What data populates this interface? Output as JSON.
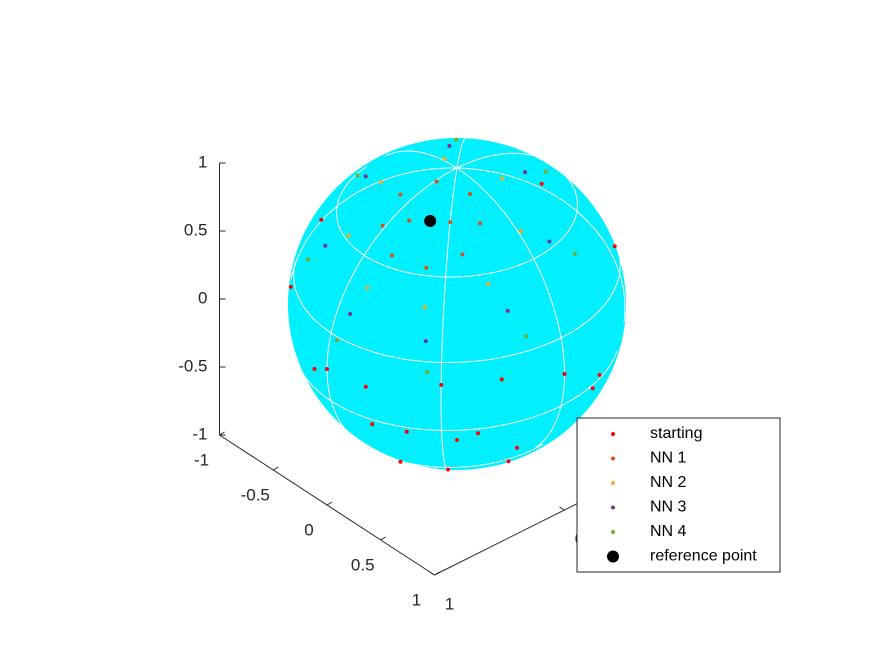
{
  "chart_data": {
    "type": "scatter3d",
    "xlim": [
      -1,
      1
    ],
    "ylim": [
      -1,
      1
    ],
    "zlim": [
      -1,
      1
    ],
    "xticks": [
      -1,
      -0.5,
      0,
      0.5,
      1
    ],
    "yticks": [
      -1,
      0,
      1
    ],
    "zticks": [
      -1,
      -0.5,
      0,
      0.5,
      1
    ],
    "surface_color": "#00f0ff",
    "legend_location": "southeast",
    "series": [
      {
        "name": "starting",
        "color": "#ff0000",
        "marker_size": 2,
        "x": [
          0.8,
          0.5,
          0.9,
          0.3,
          0.6,
          0.2,
          0.7,
          0,
          1,
          0,
          -0.7,
          0.6,
          -0.6,
          0.9,
          0.3,
          -0.9,
          -0.3,
          0.5,
          0.8,
          0.4
        ],
        "y": [
          0.2,
          0.8,
          0.4,
          0.95,
          0.1,
          0.6,
          0.7,
          1,
          0,
          0,
          0.7,
          -0.6,
          0.6,
          -0.3,
          0.9,
          0.3,
          -0.9,
          -0.8,
          0.5,
          0.4
        ],
        "z": [
          -0.55,
          -0.3,
          0.1,
          0,
          -0.8,
          -0.77,
          0.1,
          0,
          0,
          -1,
          0.1,
          -0.5,
          -0.5,
          -0.3,
          -0.3,
          0.3,
          0.3,
          0.3,
          -0.3,
          -0.82
        ]
      },
      {
        "name": "NN 1",
        "color": "#d95319",
        "marker_size": 2,
        "x": [
          0.49,
          0.385,
          0.17,
          -0.02,
          -0.09,
          0.015,
          0.23,
          0.42,
          0.3,
          0.1
        ],
        "y": [
          0.363,
          0.555,
          0.64,
          0.555,
          0.36,
          0.17,
          0.09,
          0.17,
          0.3,
          0.45
        ],
        "z": [
          0.79,
          0.73,
          0.75,
          0.83,
          0.93,
          0.99,
          0.97,
          0.89,
          0.9,
          0.88
        ]
      },
      {
        "name": "NN 2",
        "color": "#edb120",
        "marker_size": 2,
        "x": [
          0.68,
          0.5,
          0.135,
          -0.21,
          -0.32,
          -0.14,
          0.225,
          0.57
        ],
        "y": [
          0.32,
          0.66,
          0.8,
          0.66,
          0.32,
          -0.02,
          -0.16,
          -0.02
        ],
        "z": [
          0.65,
          0.55,
          0.57,
          0.71,
          0.885,
          0.985,
          0.96,
          0.82
        ]
      },
      {
        "name": "NN 3",
        "color": "#7e2f8e",
        "marker_size": 2,
        "x": [
          0.81,
          0.58,
          0.094,
          -0.355,
          -0.51,
          -0.27,
          0.21,
          0.66
        ],
        "y": [
          0.28,
          0.72,
          0.9,
          0.72,
          0.28,
          -0.165,
          -0.35,
          -0.165
        ],
        "z": [
          0.5,
          0.37,
          0.405,
          0.59,
          0.81,
          0.945,
          0.91,
          0.72
        ]
      },
      {
        "name": "NN 4",
        "color": "#77ac30",
        "marker_size": 2,
        "x": [
          0.91,
          0.63,
          0.05,
          -0.48,
          -0.66,
          -0.38,
          0.19,
          0.73
        ],
        "y": [
          0.22,
          0.75,
          0.965,
          0.75,
          0.22,
          -0.31,
          -0.525,
          -0.305
        ],
        "z": [
          0.336,
          0.18,
          0.22,
          0.44,
          0.71,
          0.865,
          0.82,
          0.6
        ]
      },
      {
        "name": "reference point",
        "color": "#000000",
        "marker_size": 6,
        "x": [
          0.21
        ],
        "y": [
          0.38
        ],
        "z": [
          0.9
        ]
      }
    ]
  }
}
